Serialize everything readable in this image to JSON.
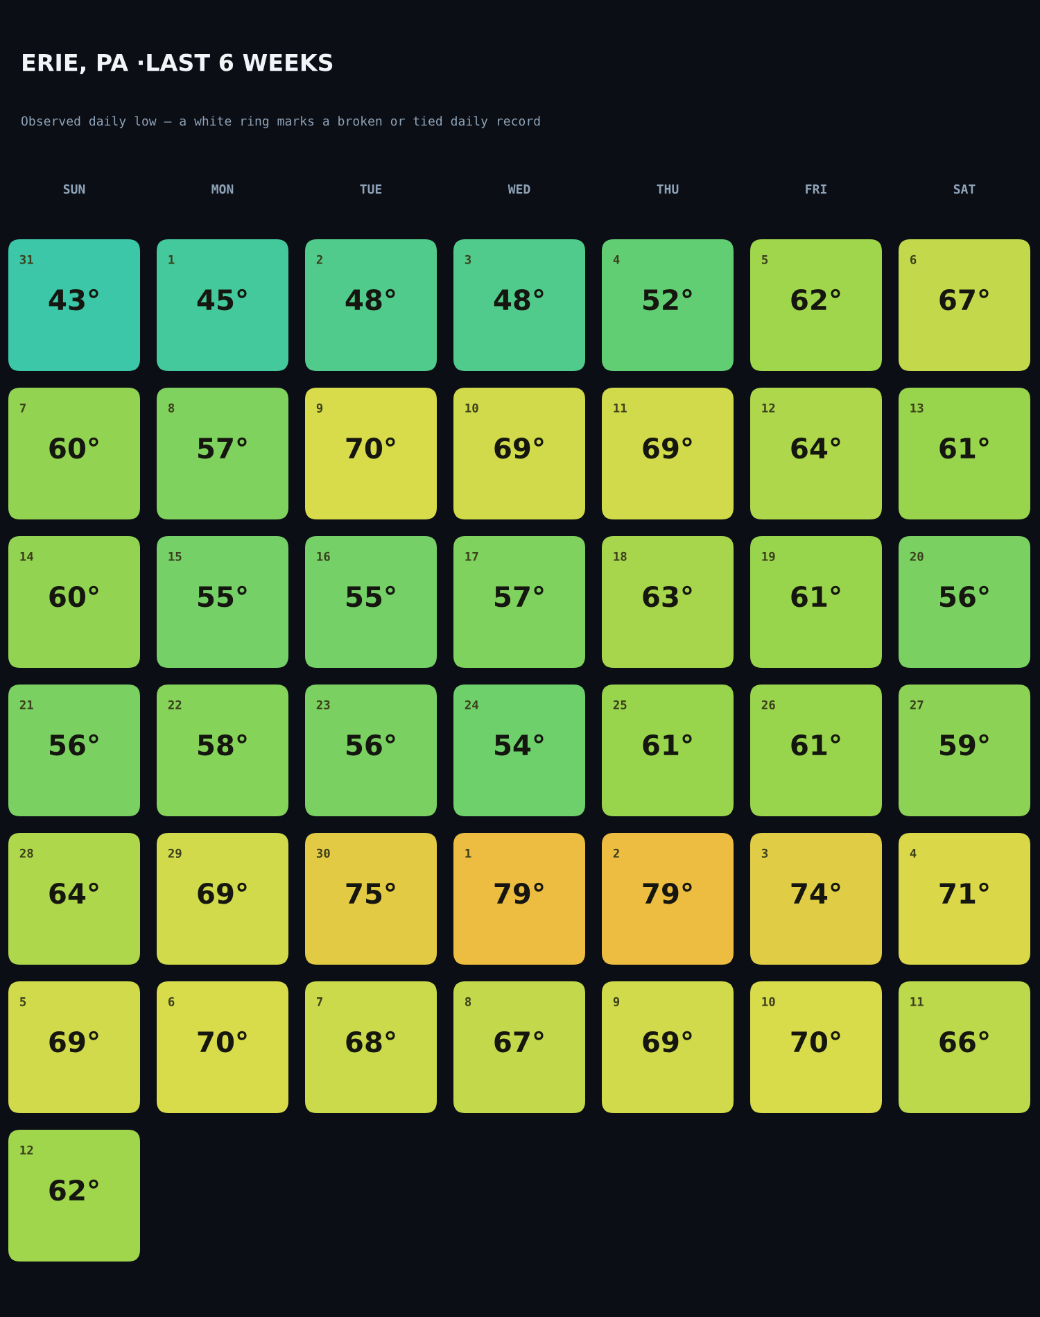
{
  "chart_data": {
    "type": "heatmap",
    "title": "ERIE, PA ·LAST 6 WEEKS",
    "subtitle": "Observed daily low — a white ring marks a broken or tied daily record",
    "categories": [
      "SUN",
      "MON",
      "TUE",
      "WED",
      "THU",
      "FRI",
      "SAT"
    ],
    "y_categories": [
      null,
      null,
      null,
      null,
      null,
      null,
      null
    ],
    "colors": [
      "#3cc8a8",
      "#62ce74",
      "#98d54c",
      "#d8db4a",
      "#ecbd40"
    ],
    "cells": [
      [
        43,
        45,
        48,
        48,
        52,
        62,
        67
      ],
      [
        60,
        57,
        70,
        69,
        69,
        64,
        61
      ],
      [
        60,
        55,
        55,
        57,
        63,
        61,
        56
      ],
      [
        56,
        58,
        56,
        54,
        61,
        61,
        59
      ],
      [
        64,
        69,
        75,
        79,
        79,
        74,
        71
      ],
      [
        69,
        70,
        68,
        67,
        69,
        70,
        66
      ],
      [
        62,
        null,
        null,
        null,
        null,
        null,
        null
      ]
    ],
    "cell_labels": [
      [
        "43°",
        "45°",
        "48°",
        "48°",
        "52°",
        "62°",
        "67°"
      ],
      [
        "60°",
        "57°",
        "70°",
        "69°",
        "69°",
        "64°",
        "61°"
      ],
      [
        "60°",
        "55°",
        "55°",
        "57°",
        "63°",
        "61°",
        "56°"
      ],
      [
        "56°",
        "58°",
        "56°",
        "54°",
        "61°",
        "61°",
        "59°"
      ],
      [
        "64°",
        "69°",
        "75°",
        "79°",
        "79°",
        "74°",
        "71°"
      ],
      [
        "69°",
        "70°",
        "68°",
        "67°",
        "69°",
        "70°",
        "66°"
      ],
      [
        "62°",
        null,
        null,
        null,
        null,
        null,
        null
      ]
    ],
    "annotations": [
      "31",
      "1",
      "2",
      "3",
      "4",
      "5",
      "6",
      "7",
      "8",
      "9",
      "10",
      "11",
      "12",
      "13",
      "14",
      "15",
      "16",
      "17",
      "18",
      "19",
      "20",
      "21",
      "22",
      "23",
      "24",
      "25",
      "26",
      "27",
      "28",
      "29",
      "30",
      "1",
      "2",
      "3",
      "4",
      "5",
      "6",
      "7",
      "8",
      "9",
      "10",
      "11",
      "12"
    ]
  }
}
